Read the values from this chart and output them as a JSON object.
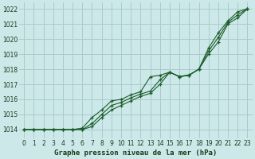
{
  "xlabel": "Graphe pression niveau de la mer (hPa)",
  "bg_color": "#cce8e8",
  "grid_color": "#aacccc",
  "line_color": "#1a5c2a",
  "xlim": [
    -0.5,
    23.5
  ],
  "ylim": [
    1013.4,
    1022.4
  ],
  "yticks": [
    1014,
    1015,
    1016,
    1017,
    1018,
    1019,
    1020,
    1021,
    1022
  ],
  "xticks": [
    0,
    1,
    2,
    3,
    4,
    5,
    6,
    7,
    8,
    9,
    10,
    11,
    12,
    13,
    14,
    15,
    16,
    17,
    18,
    19,
    20,
    21,
    22,
    23
  ],
  "series": [
    [
      1014.0,
      1014.0,
      1014.0,
      1014.0,
      1014.0,
      1014.0,
      1014.0,
      1014.2,
      1014.8,
      1015.3,
      1015.6,
      1015.9,
      1016.2,
      1016.4,
      1017.0,
      1017.8,
      1017.5,
      1017.6,
      1018.0,
      1019.4,
      1020.4,
      1021.2,
      1021.8,
      1022.0
    ],
    [
      1014.0,
      1014.0,
      1014.0,
      1014.0,
      1014.0,
      1014.0,
      1014.1,
      1014.8,
      1015.3,
      1015.9,
      1016.0,
      1016.3,
      1016.5,
      1017.5,
      1017.6,
      1017.8,
      1017.5,
      1017.6,
      1018.0,
      1019.0,
      1019.8,
      1021.0,
      1021.4,
      1022.0
    ],
    [
      1014.0,
      1014.0,
      1014.0,
      1014.0,
      1014.0,
      1014.0,
      1014.0,
      1014.4,
      1015.0,
      1015.6,
      1015.8,
      1016.1,
      1016.35,
      1016.55,
      1017.3,
      1017.8,
      1017.52,
      1017.62,
      1018.0,
      1019.2,
      1020.1,
      1021.1,
      1021.6,
      1022.0
    ]
  ],
  "tick_fontsize": 5.5,
  "xlabel_fontsize": 6.5,
  "tick_color": "#1a3a1a",
  "xlabel_color": "#1a3a1a"
}
